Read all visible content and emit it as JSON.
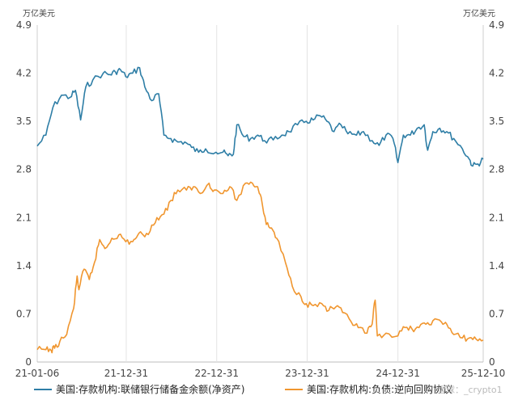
{
  "chart_data": {
    "type": "line",
    "unit_left": "万亿美元",
    "unit_right": "万亿美元",
    "ylim": [
      0,
      4.9
    ],
    "yticks": [
      "0",
      "0.7",
      "1.4",
      "2.1",
      "2.8",
      "3.5",
      "4.2",
      "4.9"
    ],
    "xlim": [
      "2021-01-06",
      "2025-12-10"
    ],
    "xticks": [
      {
        "label": "21-01-06",
        "date": "2021-01-06"
      },
      {
        "label": "21-12-31",
        "date": "2021-12-31"
      },
      {
        "label": "22-12-31",
        "date": "2022-12-31"
      },
      {
        "label": "23-12-31",
        "date": "2023-12-31"
      },
      {
        "label": "24-12-31",
        "date": "2024-12-31"
      },
      {
        "label": "25-12-10",
        "date": "2025-12-10"
      }
    ],
    "grid": "vertical-only",
    "legend": "bottom",
    "watermark": "雪球：_crypto1",
    "series": [
      {
        "name": "美国:存款机构:联储银行储备金余额(净资产)",
        "color": "#2e7ea6",
        "points": [
          [
            "2021-01-06",
            3.14
          ],
          [
            "2021-02-10",
            3.3
          ],
          [
            "2021-03-10",
            3.7
          ],
          [
            "2021-04-14",
            3.88
          ],
          [
            "2021-05-19",
            3.85
          ],
          [
            "2021-06-09",
            3.95
          ],
          [
            "2021-06-30",
            3.52
          ],
          [
            "2021-07-21",
            4.0
          ],
          [
            "2021-08-18",
            4.1
          ],
          [
            "2021-09-29",
            4.2
          ],
          [
            "2021-10-27",
            4.18
          ],
          [
            "2021-11-17",
            4.22
          ],
          [
            "2021-12-08",
            4.25
          ],
          [
            "2021-12-29",
            4.15
          ],
          [
            "2022-01-26",
            4.2
          ],
          [
            "2022-02-23",
            4.28
          ],
          [
            "2022-03-16",
            4.0
          ],
          [
            "2022-04-13",
            3.8
          ],
          [
            "2022-05-11",
            3.9
          ],
          [
            "2022-06-01",
            3.3
          ],
          [
            "2022-06-29",
            3.25
          ],
          [
            "2022-07-27",
            3.2
          ],
          [
            "2022-08-24",
            3.2
          ],
          [
            "2022-09-21",
            3.12
          ],
          [
            "2022-10-19",
            3.05
          ],
          [
            "2022-11-16",
            3.1
          ],
          [
            "2022-12-28",
            3.05
          ],
          [
            "2023-01-25",
            3.05
          ],
          [
            "2023-02-15",
            3.0
          ],
          [
            "2023-03-08",
            3.02
          ],
          [
            "2023-03-22",
            3.45
          ],
          [
            "2023-04-19",
            3.28
          ],
          [
            "2023-05-17",
            3.25
          ],
          [
            "2023-06-14",
            3.3
          ],
          [
            "2023-07-12",
            3.22
          ],
          [
            "2023-08-16",
            3.23
          ],
          [
            "2023-09-20",
            3.3
          ],
          [
            "2023-10-18",
            3.35
          ],
          [
            "2023-11-22",
            3.45
          ],
          [
            "2023-12-27",
            3.5
          ],
          [
            "2024-01-24",
            3.52
          ],
          [
            "2024-02-21",
            3.58
          ],
          [
            "2024-03-20",
            3.5
          ],
          [
            "2024-04-17",
            3.35
          ],
          [
            "2024-05-15",
            3.45
          ],
          [
            "2024-06-12",
            3.32
          ],
          [
            "2024-07-17",
            3.3
          ],
          [
            "2024-08-14",
            3.35
          ],
          [
            "2024-09-18",
            3.22
          ],
          [
            "2024-10-16",
            3.15
          ],
          [
            "2024-11-13",
            3.3
          ],
          [
            "2024-12-11",
            3.25
          ],
          [
            "2024-12-31",
            2.9
          ],
          [
            "2025-01-22",
            3.3
          ],
          [
            "2025-02-19",
            3.3
          ],
          [
            "2025-03-19",
            3.4
          ],
          [
            "2025-04-16",
            3.45
          ],
          [
            "2025-04-30",
            3.08
          ],
          [
            "2025-05-21",
            3.35
          ],
          [
            "2025-06-18",
            3.4
          ],
          [
            "2025-07-16",
            3.35
          ],
          [
            "2025-08-13",
            3.25
          ],
          [
            "2025-09-17",
            3.1
          ],
          [
            "2025-10-15",
            2.95
          ],
          [
            "2025-10-29",
            2.85
          ],
          [
            "2025-11-19",
            2.88
          ],
          [
            "2025-12-10",
            2.95
          ]
        ]
      },
      {
        "name": "美国:存款机构:负债:逆向回购协议",
        "color": "#f0962f",
        "points": [
          [
            "2021-01-06",
            0.18
          ],
          [
            "2021-02-10",
            0.18
          ],
          [
            "2021-03-03",
            0.17
          ],
          [
            "2021-03-17",
            0.2
          ],
          [
            "2021-04-07",
            0.3
          ],
          [
            "2021-05-05",
            0.4
          ],
          [
            "2021-06-02",
            0.78
          ],
          [
            "2021-06-16",
            1.25
          ],
          [
            "2021-06-23",
            1.05
          ],
          [
            "2021-07-14",
            1.35
          ],
          [
            "2021-08-04",
            1.2
          ],
          [
            "2021-08-25",
            1.45
          ],
          [
            "2021-09-15",
            1.78
          ],
          [
            "2021-10-06",
            1.65
          ],
          [
            "2021-11-03",
            1.8
          ],
          [
            "2021-12-01",
            1.85
          ],
          [
            "2021-12-29",
            1.75
          ],
          [
            "2022-01-26",
            1.75
          ],
          [
            "2022-02-16",
            1.85
          ],
          [
            "2022-03-09",
            1.85
          ],
          [
            "2022-04-06",
            1.9
          ],
          [
            "2022-05-04",
            2.1
          ],
          [
            "2022-06-01",
            2.15
          ],
          [
            "2022-06-29",
            2.35
          ],
          [
            "2022-07-27",
            2.5
          ],
          [
            "2022-08-31",
            2.5
          ],
          [
            "2022-09-28",
            2.55
          ],
          [
            "2022-10-26",
            2.45
          ],
          [
            "2022-11-30",
            2.6
          ],
          [
            "2022-12-21",
            2.5
          ],
          [
            "2023-01-25",
            2.45
          ],
          [
            "2023-02-22",
            2.55
          ],
          [
            "2023-03-22",
            2.35
          ],
          [
            "2023-04-26",
            2.6
          ],
          [
            "2023-05-24",
            2.6
          ],
          [
            "2023-06-14",
            2.55
          ],
          [
            "2023-06-28",
            2.4
          ],
          [
            "2023-07-19",
            2.0
          ],
          [
            "2023-08-09",
            1.95
          ],
          [
            "2023-08-30",
            1.8
          ],
          [
            "2023-10-04",
            1.45
          ],
          [
            "2023-11-01",
            1.1
          ],
          [
            "2023-12-06",
            0.95
          ],
          [
            "2023-12-27",
            0.85
          ],
          [
            "2024-01-24",
            0.82
          ],
          [
            "2024-02-28",
            0.85
          ],
          [
            "2024-03-27",
            0.75
          ],
          [
            "2024-04-24",
            0.8
          ],
          [
            "2024-05-22",
            0.72
          ],
          [
            "2024-06-26",
            0.58
          ],
          [
            "2024-07-24",
            0.5
          ],
          [
            "2024-08-28",
            0.42
          ],
          [
            "2024-09-18",
            0.55
          ],
          [
            "2024-09-30",
            0.9
          ],
          [
            "2024-10-09",
            0.38
          ],
          [
            "2024-11-13",
            0.42
          ],
          [
            "2024-12-31",
            0.38
          ],
          [
            "2025-01-29",
            0.5
          ],
          [
            "2025-02-26",
            0.48
          ],
          [
            "2025-03-26",
            0.5
          ],
          [
            "2025-04-23",
            0.55
          ],
          [
            "2025-05-21",
            0.6
          ],
          [
            "2025-06-25",
            0.58
          ],
          [
            "2025-07-16",
            0.55
          ],
          [
            "2025-08-13",
            0.4
          ],
          [
            "2025-09-17",
            0.35
          ],
          [
            "2025-10-15",
            0.35
          ],
          [
            "2025-11-12",
            0.33
          ],
          [
            "2025-12-10",
            0.32
          ]
        ]
      }
    ]
  }
}
